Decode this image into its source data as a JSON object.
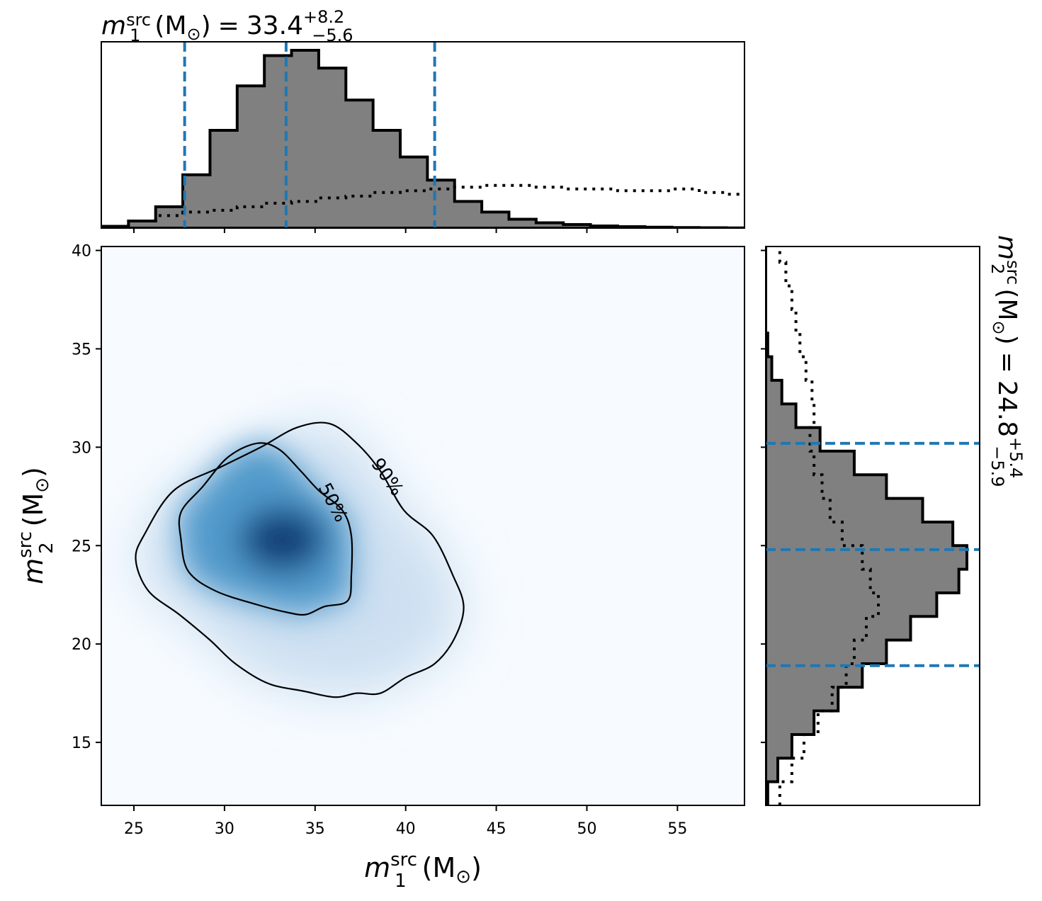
{
  "chart_data": [
    {
      "type": "heatmap",
      "panel": "joint",
      "xlabel": "m_1^src (M_⊙)",
      "ylabel": "m_2^src (M_⊙)",
      "xlim": [
        23.2,
        58.7
      ],
      "ylim": [
        11.8,
        40.2
      ],
      "xticks": [
        25,
        30,
        35,
        40,
        45,
        50,
        55
      ],
      "yticks": [
        15,
        20,
        25,
        30,
        35,
        40
      ],
      "colormap": "Blues",
      "density_peak": {
        "m1": 33.2,
        "m2": 25.3
      },
      "contours": [
        {
          "label": "50%",
          "points": [
            [
              27.6,
              25.3
            ],
            [
              28.0,
              23.7
            ],
            [
              29.5,
              22.7
            ],
            [
              31.8,
              22.0
            ],
            [
              33.5,
              21.6
            ],
            [
              34.5,
              21.5
            ],
            [
              35.5,
              21.9
            ],
            [
              36.8,
              22.2
            ],
            [
              37.0,
              23.5
            ],
            [
              37.0,
              25.5
            ],
            [
              36.5,
              26.8
            ],
            [
              35.2,
              27.8
            ],
            [
              34.2,
              28.8
            ],
            [
              33.0,
              29.9
            ],
            [
              31.8,
              30.2
            ],
            [
              30.2,
              29.5
            ],
            [
              28.8,
              28.0
            ],
            [
              27.6,
              26.7
            ]
          ]
        },
        {
          "label": "90%",
          "points": [
            [
              25.1,
              24.3
            ],
            [
              25.8,
              22.7
            ],
            [
              27.5,
              21.5
            ],
            [
              29.2,
              20.2
            ],
            [
              30.6,
              19.0
            ],
            [
              32.4,
              18.0
            ],
            [
              34.4,
              17.6
            ],
            [
              36.1,
              17.3
            ],
            [
              37.3,
              17.5
            ],
            [
              38.6,
              17.5
            ],
            [
              40.0,
              18.3
            ],
            [
              41.6,
              19.0
            ],
            [
              42.7,
              20.3
            ],
            [
              43.2,
              21.9
            ],
            [
              42.6,
              23.5
            ],
            [
              41.5,
              25.5
            ],
            [
              39.9,
              26.8
            ],
            [
              38.6,
              28.8
            ],
            [
              37.3,
              30.2
            ],
            [
              35.8,
              31.2
            ],
            [
              34.0,
              31.0
            ],
            [
              32.0,
              30.0
            ],
            [
              29.8,
              29.0
            ],
            [
              27.2,
              27.8
            ],
            [
              25.6,
              25.6
            ]
          ]
        }
      ]
    },
    {
      "type": "bar",
      "panel": "top-marginal",
      "title": "m_1^src (M_⊙) = 33.4^{+8.2}_{−5.6}",
      "title_parts": {
        "symbol": "m",
        "sub": "1",
        "sup": "src",
        "unit": "(M",
        "unit_sub": "⊙",
        "unit_close": ")",
        "equals": "=",
        "median": "33.4",
        "plus": "+8.2",
        "minus": "−5.6"
      },
      "bin_edges": [
        23.2,
        24.7,
        26.2,
        27.7,
        29.2,
        30.7,
        32.2,
        33.7,
        35.2,
        36.7,
        38.2,
        39.7,
        41.2,
        42.7,
        44.2,
        45.7,
        47.2,
        48.7,
        50.2,
        51.7,
        53.2,
        54.7,
        56.2,
        57.7,
        58.7
      ],
      "bin_edges_note": "posterior histogram (relative density)",
      "posterior": [
        0.01,
        0.04,
        0.12,
        0.3,
        0.55,
        0.8,
        0.97,
        1.0,
        0.9,
        0.72,
        0.55,
        0.4,
        0.27,
        0.15,
        0.09,
        0.05,
        0.03,
        0.02,
        0.012,
        0.008,
        0.005,
        0.003,
        0.002,
        0.001
      ],
      "prior": [
        0.01,
        0.04,
        0.07,
        0.09,
        0.1,
        0.12,
        0.14,
        0.15,
        0.17,
        0.18,
        0.2,
        0.21,
        0.22,
        0.23,
        0.24,
        0.24,
        0.23,
        0.22,
        0.22,
        0.21,
        0.21,
        0.22,
        0.2,
        0.19
      ],
      "quantiles": [
        27.8,
        33.4,
        41.6
      ]
    },
    {
      "type": "bar",
      "panel": "right-marginal",
      "orientation": "horizontal",
      "title": "m_2^src (M_⊙) = 24.8^{+5.4}_{−5.9}",
      "title_parts": {
        "symbol": "m",
        "sub": "2",
        "sup": "src",
        "unit": "(M",
        "unit_sub": "⊙",
        "unit_close": ")",
        "equals": "=",
        "median": "24.8",
        "plus": "+5.4",
        "minus": "−5.9"
      },
      "bin_edges": [
        11.8,
        13.0,
        14.2,
        15.4,
        16.6,
        17.8,
        19.0,
        20.2,
        21.4,
        22.6,
        23.8,
        25.0,
        26.2,
        27.4,
        28.6,
        29.8,
        31.0,
        32.2,
        33.4,
        34.6,
        35.8,
        37.0,
        38.2,
        39.4,
        40.2
      ],
      "posterior": [
        0.01,
        0.06,
        0.13,
        0.24,
        0.36,
        0.48,
        0.6,
        0.72,
        0.85,
        0.96,
        1.0,
        0.93,
        0.78,
        0.6,
        0.44,
        0.27,
        0.15,
        0.08,
        0.03,
        0.01,
        0.0,
        0.0,
        0.0,
        0.0
      ],
      "prior": [
        0.07,
        0.13,
        0.19,
        0.26,
        0.33,
        0.4,
        0.44,
        0.5,
        0.56,
        0.52,
        0.48,
        0.38,
        0.32,
        0.28,
        0.24,
        0.22,
        0.24,
        0.23,
        0.2,
        0.17,
        0.15,
        0.13,
        0.1,
        0.07
      ],
      "quantiles": [
        18.9,
        24.8,
        30.2
      ]
    }
  ],
  "colors": {
    "posterior_fill": "#808080",
    "posterior_edge": "#000000",
    "quantile_line": "#1f77b4",
    "contour": "#000000"
  }
}
